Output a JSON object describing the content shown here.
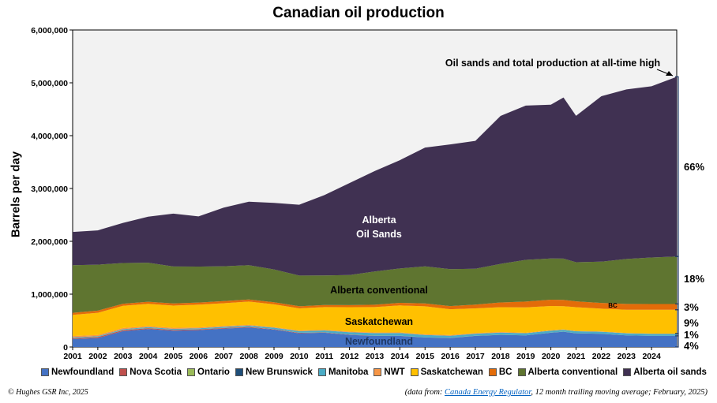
{
  "chart_data": {
    "type": "area",
    "stacked": true,
    "title": "Canadian oil production",
    "ylabel": "Barrels per day",
    "xlabel": "",
    "ylim": [
      0,
      6000000
    ],
    "yticks": [
      "0",
      "1,000,000",
      "2,000,000",
      "3,000,000",
      "4,000,000",
      "5,000,000",
      "6,000,000"
    ],
    "ytick_values": [
      0,
      1000000,
      2000000,
      3000000,
      4000000,
      5000000,
      6000000
    ],
    "x_ticks": [
      "2001",
      "2002",
      "2003",
      "2004",
      "2005",
      "2006",
      "2007",
      "2008",
      "2009",
      "2010",
      "2011",
      "2012",
      "2013",
      "2014",
      "2015",
      "2016",
      "2017",
      "2018",
      "2019",
      "2020",
      "2021",
      "2022",
      "2023",
      "2024"
    ],
    "x": [
      2001.0,
      2002.0,
      2003.0,
      2004.0,
      2005.0,
      2006.0,
      2007.0,
      2008.0,
      2009.0,
      2010.0,
      2011.0,
      2012.0,
      2013.0,
      2014.0,
      2015.0,
      2016.0,
      2017.0,
      2018.0,
      2019.0,
      2020.0,
      2020.5,
      2021.0,
      2022.0,
      2023.0,
      2024.0,
      2025.0
    ],
    "series": [
      {
        "name": "Newfoundland",
        "color": "#4472c4",
        "values": [
          150000,
          170000,
          300000,
          340000,
          310000,
          320000,
          350000,
          370000,
          330000,
          260000,
          270000,
          230000,
          210000,
          210000,
          180000,
          170000,
          210000,
          230000,
          220000,
          270000,
          290000,
          260000,
          250000,
          220000,
          210000,
          210000
        ]
      },
      {
        "name": "Nova Scotia",
        "color": "#c0504d",
        "values": [
          15000,
          18000,
          20000,
          17000,
          15000,
          14000,
          10000,
          10000,
          8000,
          8000,
          6000,
          4000,
          3000,
          2000,
          1000,
          1000,
          0,
          0,
          0,
          0,
          0,
          0,
          0,
          0,
          0,
          0
        ]
      },
      {
        "name": "Ontario",
        "color": "#9bbb59",
        "values": [
          3000,
          3000,
          3000,
          3000,
          2000,
          2000,
          2000,
          2000,
          2000,
          2000,
          2000,
          2000,
          2000,
          2000,
          2000,
          2000,
          2000,
          1000,
          1000,
          1000,
          1000,
          1000,
          1000,
          1000,
          1000,
          1000
        ]
      },
      {
        "name": "New Brunswick",
        "color": "#1f4e79",
        "values": [
          0,
          0,
          0,
          0,
          0,
          0,
          0,
          0,
          0,
          0,
          0,
          0,
          0,
          0,
          0,
          0,
          0,
          0,
          0,
          0,
          0,
          0,
          0,
          0,
          0,
          0
        ]
      },
      {
        "name": "Manitoba",
        "color": "#4bacc6",
        "values": [
          15000,
          15000,
          15000,
          16000,
          17000,
          18000,
          20000,
          22000,
          25000,
          30000,
          35000,
          45000,
          48000,
          50000,
          45000,
          40000,
          40000,
          42000,
          40000,
          38000,
          36000,
          37000,
          38000,
          38000,
          38000,
          38000
        ]
      },
      {
        "name": "NWT",
        "color": "#f79646",
        "values": [
          25000,
          22000,
          22000,
          20000,
          20000,
          18000,
          17000,
          15000,
          13000,
          12000,
          12000,
          12000,
          12000,
          12000,
          12000,
          12000,
          10000,
          10000,
          8000,
          7000,
          6000,
          6000,
          6000,
          6000,
          5000,
          5000
        ]
      },
      {
        "name": "Saskatchewan",
        "color": "#ffc000",
        "values": [
          400000,
          420000,
          420000,
          420000,
          420000,
          430000,
          430000,
          440000,
          430000,
          420000,
          430000,
          460000,
          480000,
          510000,
          530000,
          490000,
          470000,
          470000,
          480000,
          460000,
          440000,
          450000,
          430000,
          440000,
          450000,
          450000
        ]
      },
      {
        "name": "BC",
        "color": "#e36c09",
        "values": [
          40000,
          40000,
          40000,
          40000,
          40000,
          40000,
          40000,
          40000,
          40000,
          40000,
          40000,
          40000,
          45000,
          50000,
          55000,
          60000,
          70000,
          90000,
          110000,
          120000,
          120000,
          110000,
          110000,
          110000,
          110000,
          110000
        ]
      },
      {
        "name": "Alberta conventional",
        "color": "#5f7530",
        "values": [
          900000,
          870000,
          770000,
          740000,
          700000,
          680000,
          660000,
          650000,
          620000,
          580000,
          560000,
          570000,
          630000,
          650000,
          700000,
          700000,
          680000,
          730000,
          790000,
          780000,
          780000,
          740000,
          780000,
          850000,
          880000,
          900000
        ]
      },
      {
        "name": "Alberta oil sands",
        "color": "#403152",
        "values": [
          630000,
          650000,
          760000,
          870000,
          1000000,
          950000,
          1110000,
          1200000,
          1260000,
          1340000,
          1520000,
          1740000,
          1900000,
          2050000,
          2250000,
          2360000,
          2420000,
          2800000,
          2920000,
          2910000,
          3050000,
          2770000,
          3130000,
          3210000,
          3240000,
          3400000
        ]
      }
    ],
    "legend_position": "bottom",
    "grid": false
  },
  "area_labels": {
    "oil_sands_line1": "Alberta",
    "oil_sands_line2": "Oil Sands",
    "ab_conv": "Alberta conventional",
    "sask": "Saskatchewan",
    "nfld": "Newfoundland",
    "bc": "BC"
  },
  "annotation": "Oil sands and total production at all-time high",
  "shares": [
    "66%",
    "18%",
    "3%",
    "9%",
    "1%",
    "4%"
  ],
  "footer": {
    "copyright": "© Hughes GSR Inc, 2025",
    "source_prefix": "(data from: ",
    "source_link": "Canada Energy Regulator",
    "source_suffix": ", 12 month trailing moving average; February, 2025)"
  }
}
